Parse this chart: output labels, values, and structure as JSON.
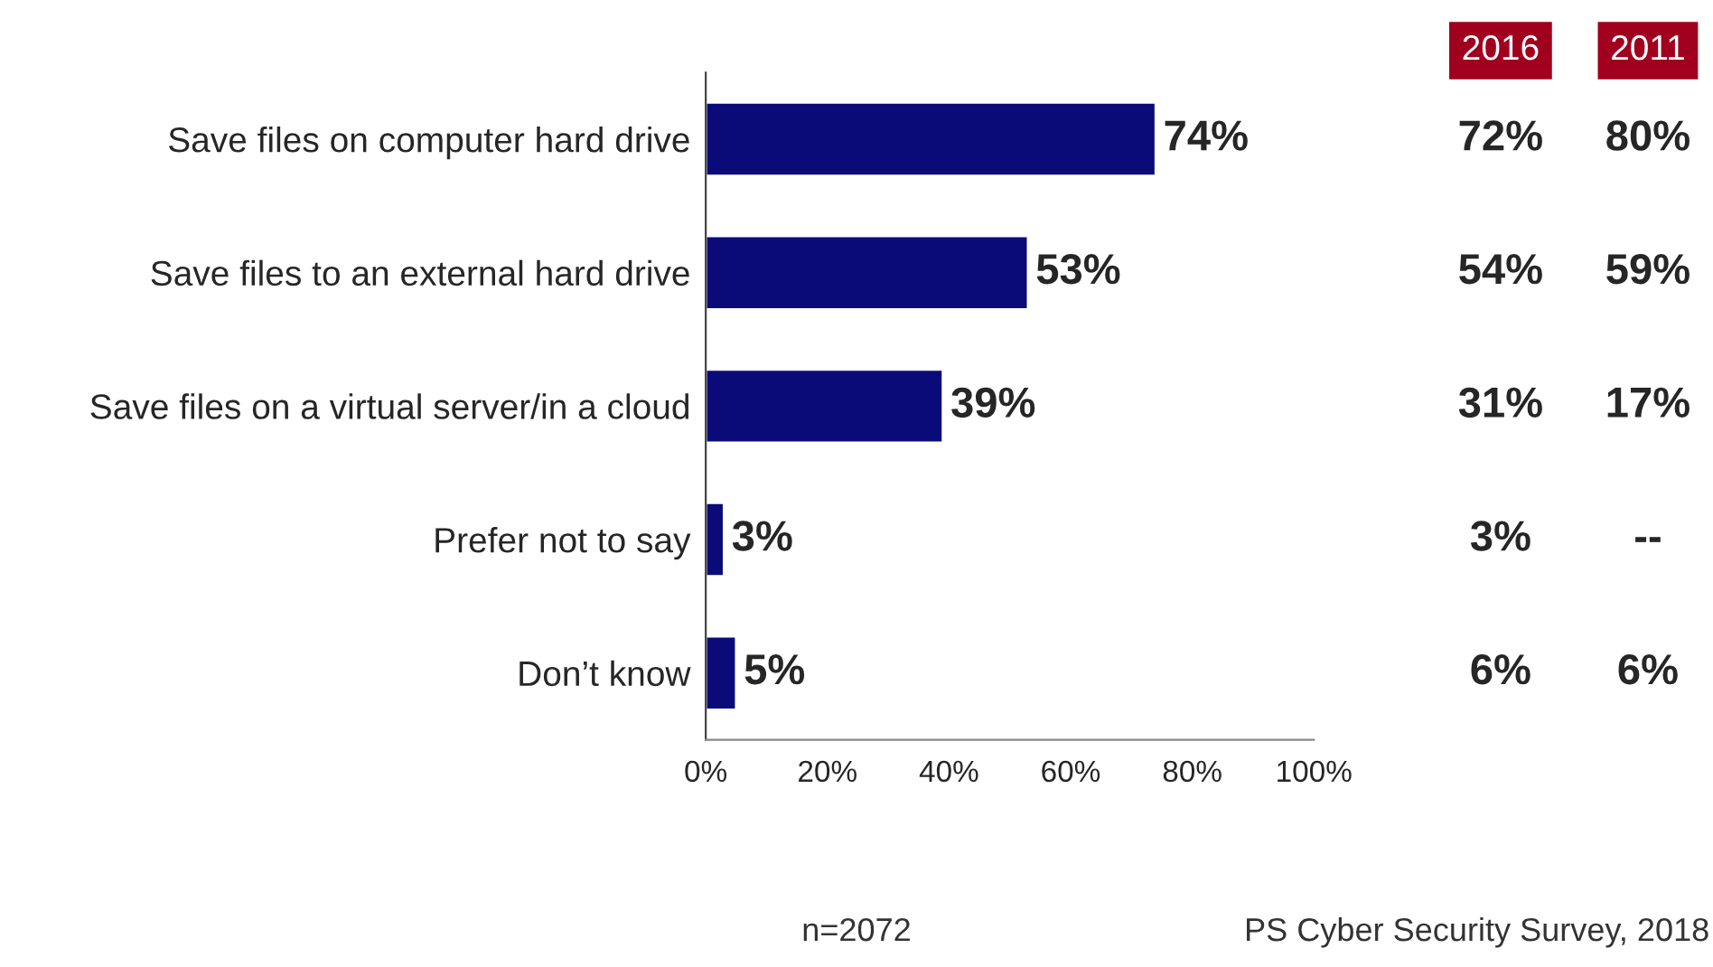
{
  "chart_data": {
    "type": "bar",
    "orientation": "horizontal",
    "categories": [
      "Save files on computer hard drive",
      "Save files to an external hard drive",
      "Save files on a virtual server/in a cloud",
      "Prefer not to say",
      "Don’t know"
    ],
    "values": [
      74,
      53,
      39,
      3,
      5
    ],
    "value_labels": [
      "74%",
      "53%",
      "39%",
      "3%",
      "5%"
    ],
    "color": "#0a0a78",
    "xlim": [
      0,
      100
    ],
    "xticks": [
      {
        "value": 0,
        "label": "0%"
      },
      {
        "value": 20,
        "label": "20%"
      },
      {
        "value": 40,
        "label": "40%"
      },
      {
        "value": 60,
        "label": "60%"
      },
      {
        "value": 80,
        "label": "80%"
      },
      {
        "value": 100,
        "label": "100%"
      }
    ],
    "grid": false,
    "annotations": [
      "2016",
      "2011",
      "72%",
      "80%",
      "54%",
      "59%",
      "31%",
      "17%",
      "3%",
      "--",
      "6%",
      "6%",
      "n=2072",
      "PS Cyber Security Survey, 2018"
    ]
  }
}
